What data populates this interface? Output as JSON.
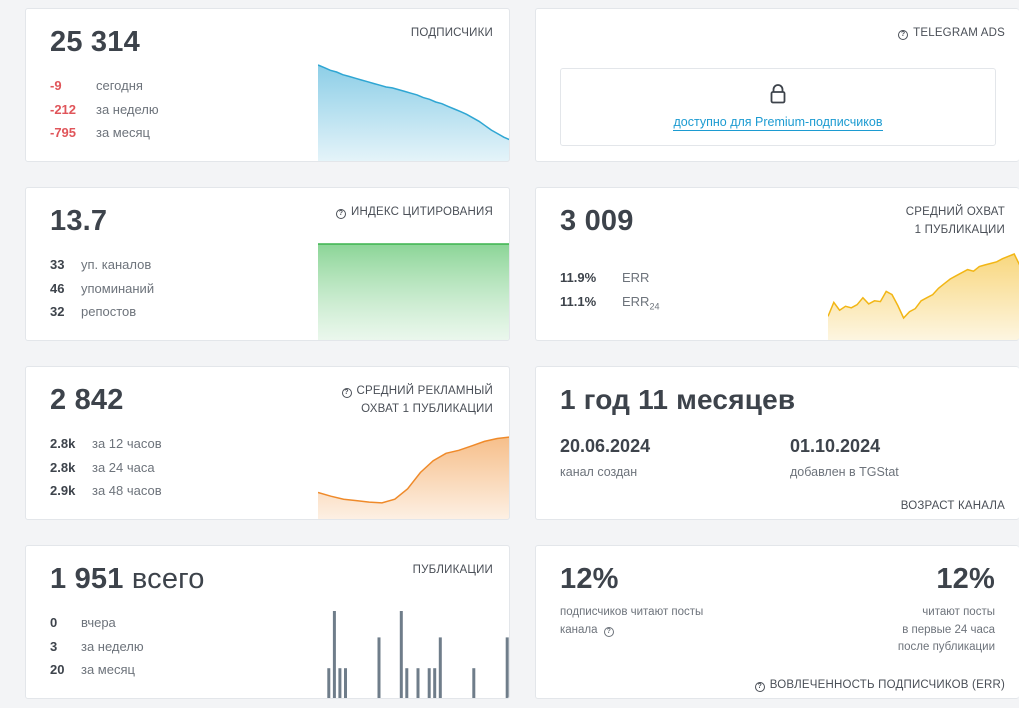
{
  "subscribers": {
    "value": "25 314",
    "label": "ПОДПИСЧИКИ",
    "rows": [
      {
        "num": "-9",
        "text": "сегодня"
      },
      {
        "num": "-212",
        "text": "за неделю"
      },
      {
        "num": "-795",
        "text": "за месяц"
      }
    ],
    "trend": [
      0,
      3,
      6,
      8,
      11,
      13,
      15,
      17,
      19,
      21,
      23,
      25,
      26,
      28,
      30,
      32,
      34,
      37,
      39,
      42,
      44,
      47,
      50,
      53,
      56,
      60,
      64,
      69,
      74,
      78,
      82,
      85
    ]
  },
  "telegram_ads": {
    "label": "TELEGRAM ADS",
    "premium_link": "доступно для Premium-подписчиков",
    "icon": "lock-icon"
  },
  "citation": {
    "value": "13.7",
    "label": "ИНДЕКС ЦИТИРОВАНИЯ",
    "rows": [
      {
        "num": "33",
        "text": "уп. каналов"
      },
      {
        "num": "46",
        "text": "упоминаний"
      },
      {
        "num": "32",
        "text": "репостов"
      }
    ]
  },
  "reach": {
    "value": "3 009",
    "label_line1": "СРЕДНИЙ ОХВАТ",
    "label_line2": "1 ПУБЛИКАЦИИ",
    "err": {
      "num": "11.9%",
      "text": "ERR"
    },
    "err24": {
      "num": "11.1%",
      "text": "ERR",
      "sub": "24"
    },
    "trend": [
      20,
      38,
      28,
      33,
      31,
      35,
      44,
      36,
      40,
      39,
      52,
      48,
      34,
      18,
      26,
      30,
      40,
      44,
      48,
      56,
      62,
      68,
      72,
      76,
      80,
      78,
      84,
      86,
      88,
      90,
      94,
      97,
      100,
      85
    ]
  },
  "ad_reach": {
    "value": "2 842",
    "label_line1": "СРЕДНИЙ РЕКЛАМНЫЙ",
    "label_line2": "ОХВАТ 1 ПУБЛИКАЦИИ",
    "rows": [
      {
        "num": "2.8k",
        "text": "за 12 часов"
      },
      {
        "num": "2.8k",
        "text": "за 24 часа"
      },
      {
        "num": "2.9k",
        "text": "за 48 часов"
      }
    ],
    "trend": [
      25,
      20,
      16,
      14,
      12,
      11,
      16,
      30,
      52,
      68,
      78,
      82,
      88,
      94,
      98,
      100
    ]
  },
  "channel_age": {
    "value": "1 год 11 месяцев",
    "created_date": "20.06.2024",
    "created_label": "канал создан",
    "added_date": "01.10.2024",
    "added_label": "добавлен в TGStat",
    "label": "ВОЗРАСТ КАНАЛА"
  },
  "publications": {
    "value": "1 951",
    "suffix": "всего",
    "label": "ПУБЛИКАЦИИ",
    "rows": [
      {
        "num": "0",
        "text": "вчера"
      },
      {
        "num": "3",
        "text": "за неделю"
      },
      {
        "num": "20",
        "text": "за месяц"
      }
    ],
    "bars": [
      0.35,
      1,
      0.35,
      0.35,
      0,
      0,
      0,
      0,
      0,
      0.7,
      0,
      0,
      0,
      1,
      0.35,
      0,
      0.35,
      0,
      0.35,
      0.35,
      0.7,
      0,
      0,
      0,
      0,
      0,
      0.35,
      0,
      0,
      0,
      0,
      0,
      0.7
    ]
  },
  "engagement": {
    "value_left": "12%",
    "value_right": "12%",
    "left_line1": "подписчиков читают посты",
    "left_line2": "канала",
    "right_line1": "читают посты",
    "right_line2": "в первые 24 часа",
    "right_line3": "после публикации",
    "label": "ВОВЛЕЧЕННОСТЬ ПОДПИСЧИКОВ (ERR)"
  },
  "colors": {
    "blue": "#2fa6d3",
    "green": "#3cb44e",
    "yellow": "#f2b615",
    "orange": "#ef8a2a",
    "bar_gray": "#6f7d8a",
    "red": "#e0555a"
  }
}
